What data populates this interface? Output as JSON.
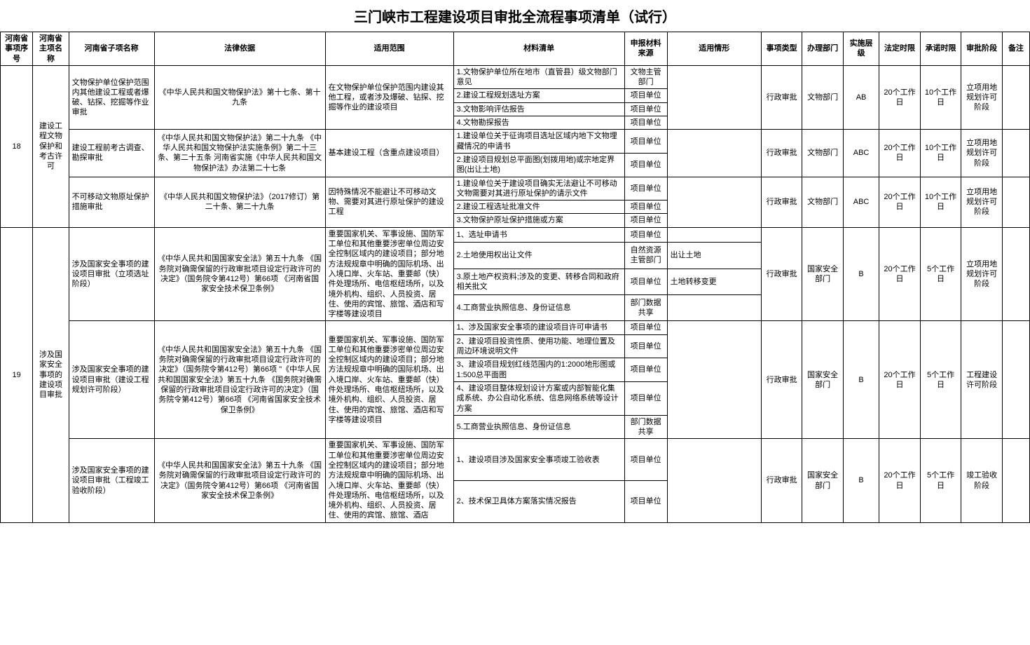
{
  "title": "三门峡市工程建设项目审批全流程事项清单（试行）",
  "headers": {
    "c0": "河南省事项序号",
    "c1": "河南省主项名称",
    "c2": "河南省子项名称",
    "c3": "法律依据",
    "c4": "适用范围",
    "c5": "材料清单",
    "c6": "申报材料来源",
    "c7": "适用情形",
    "c8": "事项类型",
    "c9": "办理部门",
    "c10": "实施层级",
    "c11": "法定时限",
    "c12": "承诺时限",
    "c13": "审批阶段",
    "c14": "备注"
  },
  "r18": {
    "seq": "18",
    "main": "建设工程文物保护和考古许可",
    "sub1": {
      "name": "文物保护单位保护范围内其他建设工程或者爆破、钻探、挖掘等作业审批",
      "law": "《中华人民共和国文物保护法》第十七条、第十九条",
      "scope": "在文物保护单位保护范围内建设其他工程，或者涉及爆破、钻探、挖掘等作业的建设项目",
      "m1": "1.文物保护单位所在地市（直管县）级文物部门意见",
      "s1": "文物主管部门",
      "m2": "2.建设工程规划选址方案",
      "s2": "项目单位",
      "m3": "3.文物影响评估报告",
      "s3": "项目单位",
      "m4": "4.文物勘探报告",
      "s4": "项目单位",
      "type": "行政审批",
      "dept": "文物部门",
      "level": "AB",
      "legal": "20个工作日",
      "promise": "10个工作日",
      "stage": "立项用地规划许可阶段"
    },
    "sub2": {
      "name": "建设工程前考古调查、勘探审批",
      "law": "《中华人民共和国文物保护法》第二十九条 《中华人民共和国文物保护法实施条例》第二十三条、第二十五条\n河南省实施《中华人民共和国文物保护法》办法第二十七条",
      "scope": "基本建设工程（含重点建设项目）",
      "m1": "1.建设单位关于征询项目选址区域内地下文物埋藏情况的申请书",
      "s1": "项目单位",
      "m2": "2.建设项目规划总平面图(划拨用地)或宗地定界图(出让土地)",
      "s2": "项目单位",
      "type": "行政审批",
      "dept": "文物部门",
      "level": "ABC",
      "legal": "20个工作日",
      "promise": "10个工作日",
      "stage": "立项用地规划许可阶段"
    },
    "sub3": {
      "name": "不可移动文物原址保护措施审批",
      "law": "《中华人民共和国文物保护法》（2017修订）第二十条、第二十九条",
      "scope": "因特殊情况不能避让不可移动文物、需要对其进行原址保护的建设工程",
      "m1": "1.建设单位关于建设项目确实无法避让不可移动文物需要对其进行原址保护的请示文件",
      "s1": "项目单位",
      "m2": "2.建设工程选址批准文件",
      "s2": "项目单位",
      "m3": "3.文物保护原址保护措施或方案",
      "s3": "项目单位",
      "type": "行政审批",
      "dept": "文物部门",
      "level": "ABC",
      "legal": "20个工作日",
      "promise": "10个工作日",
      "stage": "立项用地规划许可阶段"
    }
  },
  "r19": {
    "seq": "19",
    "main": "涉及国家安全事项的建设项目审批",
    "sub1": {
      "name": "涉及国家安全事项的建设项目审批（立项选址阶段）",
      "law": "《中华人民共和国国家安全法》第五十九条 《国务院对确需保留的行政审批项目设定行政许可的决定》（国务院令第412号）第66项 《河南省国家安全技术保卫条例》",
      "scope": "重要国家机关、军事设施、国防军工单位和其他重要涉密单位周边安全控制区域内的建设项目；部分地方法规规章中明确的国际机场、出入境口岸、火车站、重要邮（快）件处理场所、电信枢纽场所，以及境外机构、组织、人员投资、居住、使用的宾馆、旅馆、酒店和写字楼等建设项目",
      "m1": "1、选址申请书",
      "s1": "项目单位",
      "m2": "2.土地使用权出让文件",
      "s2": "自然资源主管部门",
      "c2": "出让土地",
      "m3": "3.原土地产权资料;涉及的变更、转移合同和政府相关批文",
      "s3": "项目单位",
      "c3": "土地转移变更",
      "m4": "4.工商营业执照信息、身份证信息",
      "s4": "部门数据共享",
      "type": "行政审批",
      "dept": "国家安全部门",
      "level": "B",
      "legal": "20个工作日",
      "promise": "5个工作日",
      "stage": "立项用地规划许可阶段"
    },
    "sub2": {
      "name": "涉及国家安全事项的建设项目审批（建设工程规划许可阶段）",
      "law": "《中华人民共和国国家安全法》第五十九条 《国务院对确需保留的行政审批项目设定行政许可的决定》（国务院令第412号）第66项 \"《中华人民共和国国家安全法》第五十九条 《国务院对确需保留的行政审批项目设定行政许可的决定》（国务院令第412号）第66项 《河南省国家安全技术保卫条例》",
      "scope": "重要国家机关、军事设施、国防军工单位和其他重要涉密单位周边安全控制区域内的建设项目；部分地方法规规章中明确的国际机场、出入境口岸、火车站、重要邮（快）件处理场所、电信枢纽场所，以及境外机构、组织、人员投资、居住、使用的宾馆、旅馆、酒店和写字楼等建设项目",
      "m1": "1、涉及国家安全事项的建设项目许可申请书",
      "s1": "项目单位",
      "m2": "2、建设项目投资性质、使用功能、地理位置及周边环境说明文件",
      "s2": "项目单位",
      "m3": "3、建设项目规划红线范围内的1:2000地形图或1:500总平面图",
      "s3": "项目单位",
      "m4": "4、建设项目整体规划设计方案或内部智能化集成系统、办公自动化系统、信息网络系统等设计方案",
      "s4": "项目单位",
      "m5": "5.工商营业执照信息、身份证信息",
      "s5": "部门数据共享",
      "type": "行政审批",
      "dept": "国家安全部门",
      "level": "B",
      "legal": "20个工作日",
      "promise": "5个工作日",
      "stage": "工程建设许可阶段"
    },
    "sub3": {
      "name": "涉及国家安全事项的建设项目审批（工程竣工验收阶段）",
      "law": "《中华人民共和国国家安全法》第五十九条 《国务院对确需保留的行政审批项目设定行政许可的决定》（国务院令第412号）第66项 《河南省国家安全技术保卫条例》",
      "scope": "重要国家机关、军事设施、国防军工单位和其他重要涉密单位周边安全控制区域内的建设项目；部分地方法规规章中明确的国际机场、出入境口岸、火车站、重要邮（快）件处理场所、电信枢纽场所，以及境外机构、组织、人员投资、居住、使用的宾馆、旅馆、酒店",
      "m1": "1、建设项目涉及国家安全事项竣工验收表",
      "s1": "项目单位",
      "m2": "2、技术保卫具体方案落实情况报告",
      "s2": "项目单位",
      "type": "行政审批",
      "dept": "国家安全部门",
      "level": "B",
      "legal": "20个工作日",
      "promise": "5个工作日",
      "stage": "竣工验收阶段"
    }
  }
}
